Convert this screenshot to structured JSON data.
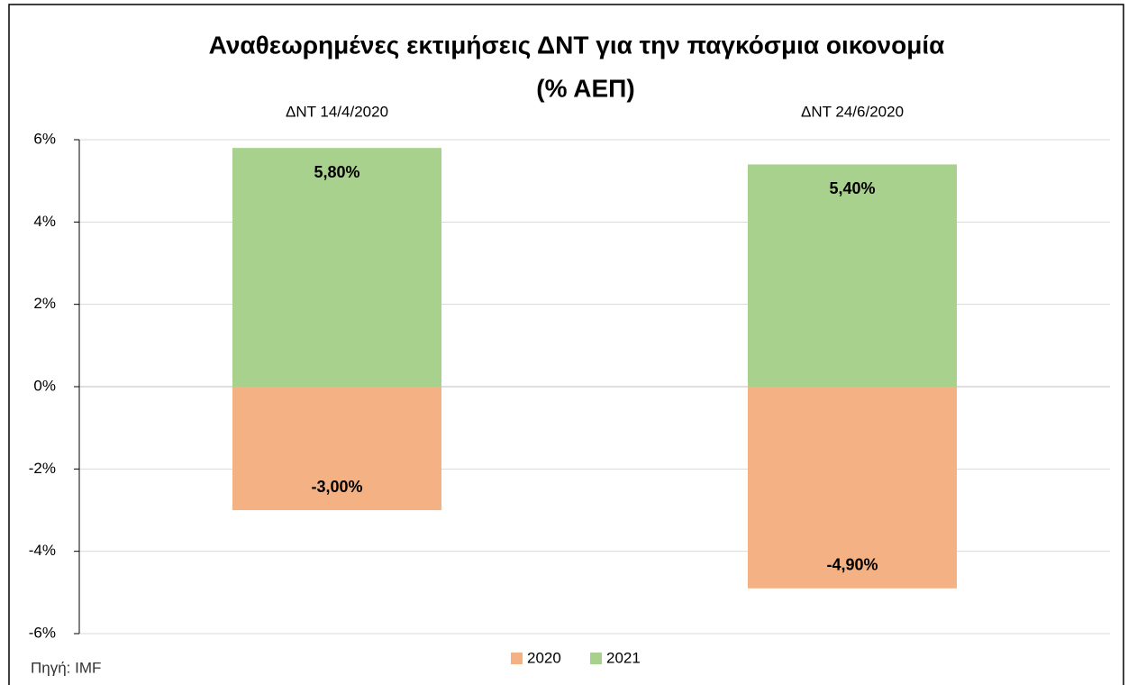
{
  "chart_data": {
    "type": "bar",
    "stacked": true,
    "title": [
      "Αναθεωρημένες εκτιμήσεις ΔΝΤ για την παγκόσμια οικονομία",
      "(% ΑΕΠ)"
    ],
    "categories": [
      "ΔΝΤ 14/4/2020",
      "ΔΝΤ 24/6/2020"
    ],
    "series": [
      {
        "name": "2020",
        "color": "#f4b183",
        "values": [
          -3.0,
          -4.9
        ],
        "value_labels": [
          "-3,00%",
          "-4,90%"
        ]
      },
      {
        "name": "2021",
        "color": "#a9d18e",
        "values": [
          5.8,
          5.4
        ],
        "value_labels": [
          "5,80%",
          "5,40%"
        ]
      }
    ],
    "ylim": [
      -6,
      6
    ],
    "yticks": [
      {
        "value": -6,
        "label": "-6%"
      },
      {
        "value": -4,
        "label": "-4%"
      },
      {
        "value": -2,
        "label": "-2%"
      },
      {
        "value": 0,
        "label": "0%"
      },
      {
        "value": 2,
        "label": "2%"
      },
      {
        "value": 4,
        "label": "4%"
      },
      {
        "value": 6,
        "label": "6%"
      }
    ],
    "grid": true,
    "legend": "bottom",
    "source": "Πηγή: IMF"
  }
}
